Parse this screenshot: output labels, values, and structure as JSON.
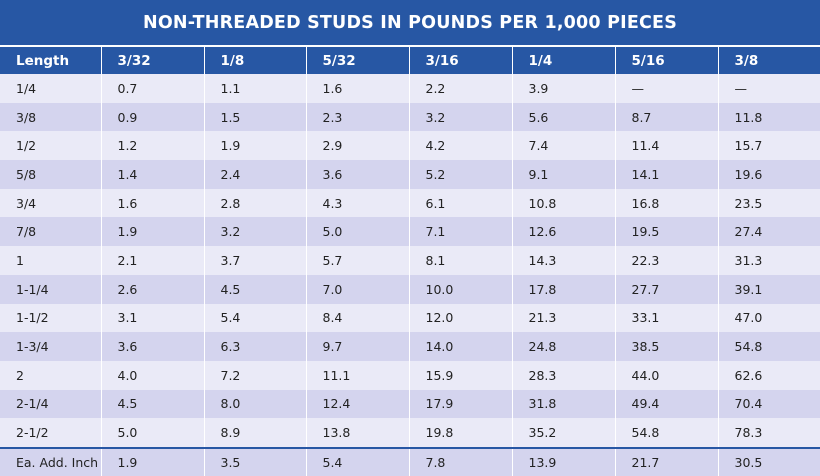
{
  "title": "NON-THREADED STUDS IN POUNDS PER 1,000 PIECES",
  "headers": [
    "Length",
    "3/32",
    "1/8",
    "5/32",
    "3/16",
    "1/4",
    "5/16",
    "3/8"
  ],
  "rows": [
    [
      "1/4",
      "0.7",
      "1.1",
      "1.6",
      "2.2",
      "3.9",
      "—",
      "—"
    ],
    [
      "3/8",
      "0.9",
      "1.5",
      "2.3",
      "3.2",
      "5.6",
      "8.7",
      "11.8"
    ],
    [
      "1/2",
      "1.2",
      "1.9",
      "2.9",
      "4.2",
      "7.4",
      "11.4",
      "15.7"
    ],
    [
      "5/8",
      "1.4",
      "2.4",
      "3.6",
      "5.2",
      "9.1",
      "14.1",
      "19.6"
    ],
    [
      "3/4",
      "1.6",
      "2.8",
      "4.3",
      "6.1",
      "10.8",
      "16.8",
      "23.5"
    ],
    [
      "7/8",
      "1.9",
      "3.2",
      "5.0",
      "7.1",
      "12.6",
      "19.5",
      "27.4"
    ],
    [
      "1",
      "2.1",
      "3.7",
      "5.7",
      "8.1",
      "14.3",
      "22.3",
      "31.3"
    ],
    [
      "1-1/4",
      "2.6",
      "4.5",
      "7.0",
      "10.0",
      "17.8",
      "27.7",
      "39.1"
    ],
    [
      "1-1/2",
      "3.1",
      "5.4",
      "8.4",
      "12.0",
      "21.3",
      "33.1",
      "47.0"
    ],
    [
      "1-3/4",
      "3.6",
      "6.3",
      "9.7",
      "14.0",
      "24.8",
      "38.5",
      "54.8"
    ],
    [
      "2",
      "4.0",
      "7.2",
      "11.1",
      "15.9",
      "28.3",
      "44.0",
      "62.6"
    ],
    [
      "2-1/4",
      "4.5",
      "8.0",
      "12.4",
      "17.9",
      "31.8",
      "49.4",
      "70.4"
    ],
    [
      "2-1/2",
      "5.0",
      "8.9",
      "13.8",
      "19.8",
      "35.2",
      "54.8",
      "78.3"
    ]
  ],
  "footer": [
    "Ea. Add. Inch",
    "1.9",
    "3.5",
    "5.4",
    "7.8",
    "13.9",
    "21.7",
    "30.5"
  ],
  "colors": {
    "header_bg": "#2757a4",
    "row_light": "#eaeaf7",
    "row_dark": "#d4d4ee"
  }
}
